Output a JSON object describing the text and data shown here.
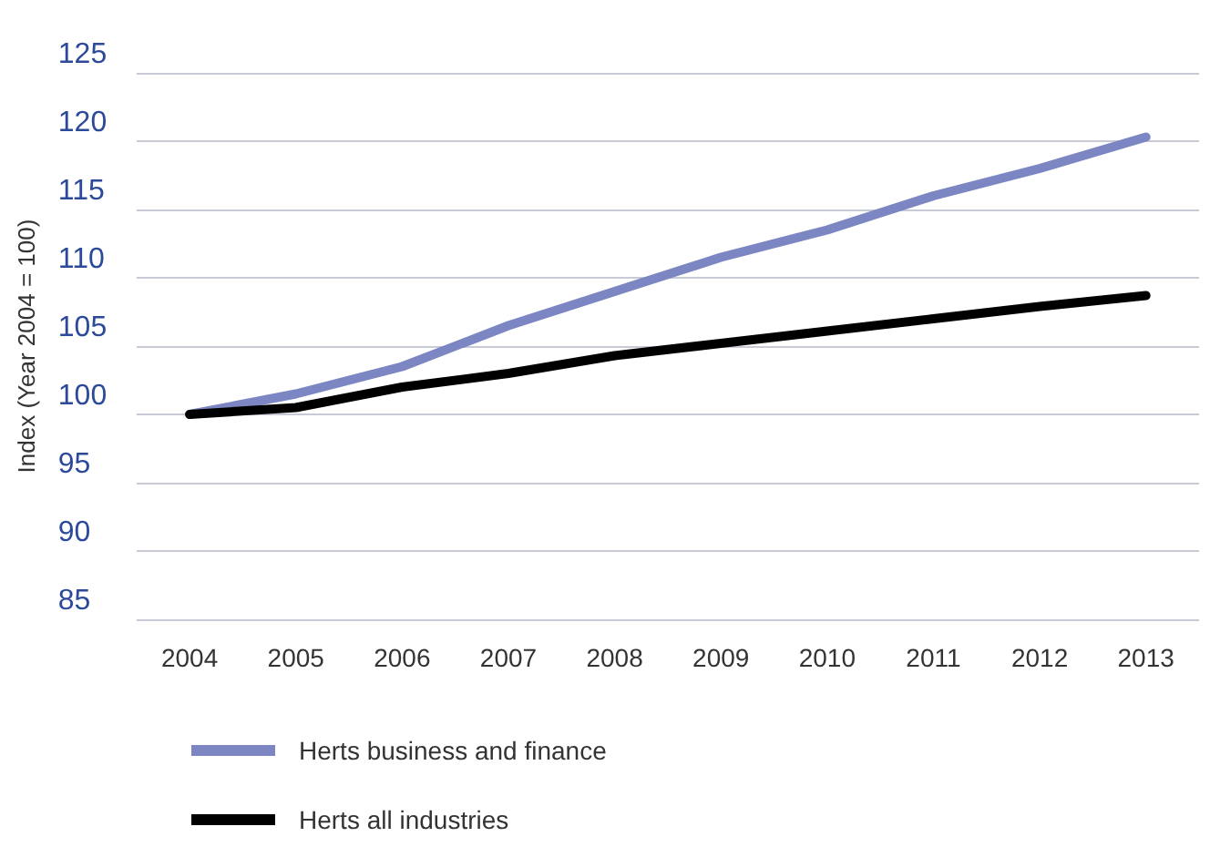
{
  "chart_data": {
    "type": "line",
    "ylabel": "Index (Year 2004 = 100)",
    "categories": [
      "2004",
      "2005",
      "2006",
      "2007",
      "2008",
      "2009",
      "2010",
      "2011",
      "2012",
      "2013"
    ],
    "series": [
      {
        "name": "Herts business and finance",
        "color": "#7b86c2",
        "values": [
          100,
          101.5,
          103.5,
          106.5,
          109,
          111.5,
          113.5,
          116,
          118,
          120.3
        ]
      },
      {
        "name": "Herts all industries",
        "color": "#000000",
        "values": [
          100,
          100.5,
          102,
          103,
          104.3,
          105.2,
          106.1,
          107,
          107.9,
          108.7
        ]
      }
    ],
    "ylim": [
      85,
      125
    ],
    "yticks": [
      85,
      90,
      95,
      100,
      105,
      110,
      115,
      120,
      125
    ],
    "grid": "y",
    "legend": "bottom left",
    "marker": "none",
    "line_style": "solid"
  }
}
